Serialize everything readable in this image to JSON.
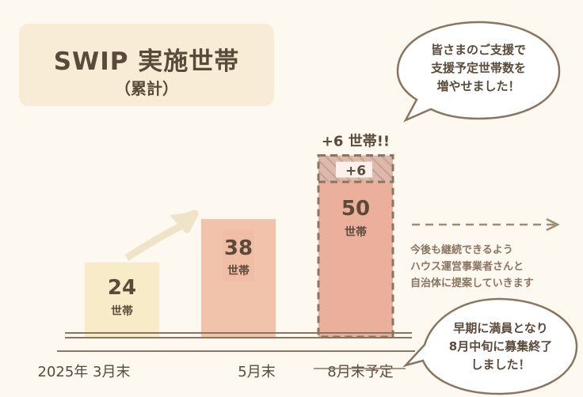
{
  "title": {
    "main": "SWIP 実施世帯",
    "sub": "（累計）"
  },
  "chart_data": {
    "type": "bar",
    "categories": [
      "2025年 3月末",
      "5月末",
      "8月末予定"
    ],
    "values": [
      24,
      38,
      50
    ],
    "value_labels": [
      "24",
      "38",
      "50"
    ],
    "unit_label": "世帯",
    "increment": {
      "value": 6,
      "bar_label": "+6",
      "top_label": "+6 世帯!!"
    },
    "colors": {
      "bar1": "#f8ecc8",
      "bar2": "#f1c3aa",
      "bar3": "#ebb09c",
      "increment": "#dcb9ab",
      "dash": "#8a7560",
      "arrow": "#efe3c8"
    }
  },
  "callouts": {
    "top": "皆さまのご支援で\n支援予定世帯数を\n増やせました！",
    "bottom": "早期に満員となり\n8月中旬に募集終了\nしました！"
  },
  "note": "今後も継続できるよう\nハウス運営事業者さんと\n自治体に提案していきます"
}
